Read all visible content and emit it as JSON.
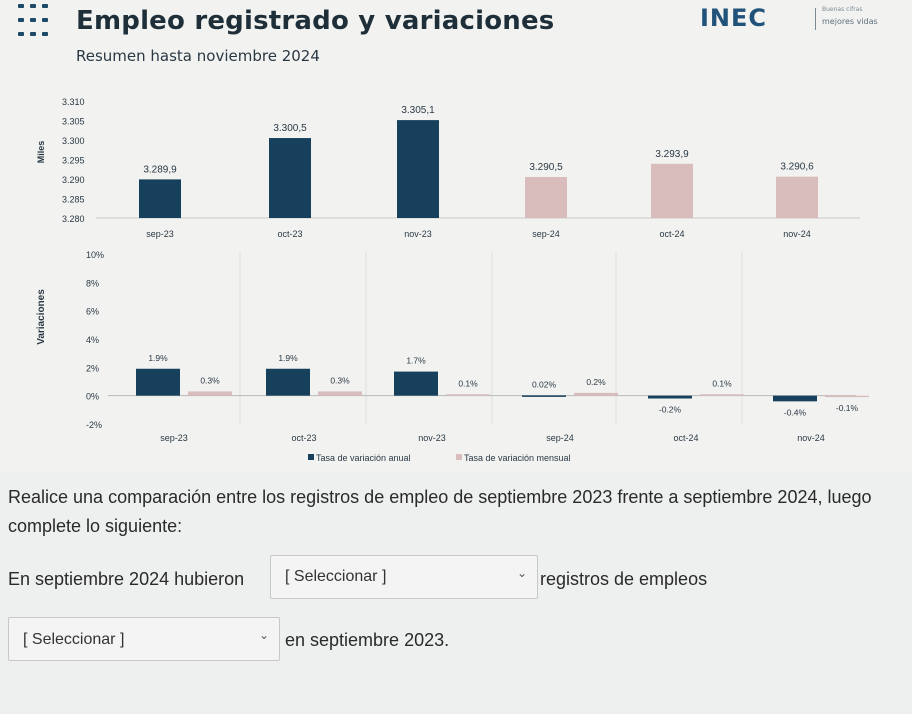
{
  "header": {
    "title": "Empleo registrado y variaciones",
    "subtitle": "Resumen hasta noviembre 2024",
    "logo_text": "INEC",
    "logo_tagline_small": "Buenas cifras",
    "logo_tagline": "mejores vidas"
  },
  "chart_data": [
    {
      "type": "bar",
      "ylabel": "Miles",
      "ylim": [
        3280,
        3310
      ],
      "yticks": [
        "3.310",
        "3.305",
        "3.300",
        "3.295",
        "3.290",
        "3.285",
        "3.280"
      ],
      "categories": [
        "sep-23",
        "oct-23",
        "nov-23",
        "sep-24",
        "oct-24",
        "nov-24"
      ],
      "values": [
        3289.9,
        3300.5,
        3305.1,
        3290.5,
        3293.9,
        3290.6
      ],
      "value_labels": [
        "3.289,9",
        "3.300,5",
        "3.305,1",
        "3.290,5",
        "3.293,9",
        "3.290,6"
      ],
      "colors": [
        "#16405c",
        "#16405c",
        "#16405c",
        "#d9bcbc",
        "#d9bcbc",
        "#d9bcbc"
      ]
    },
    {
      "type": "bar",
      "ylabel": "Variaciones",
      "ylim": [
        -2,
        10
      ],
      "yticks": [
        "10%",
        "8%",
        "6%",
        "4%",
        "2%",
        "0%",
        "-2%"
      ],
      "categories": [
        "sep-23",
        "oct-23",
        "nov-23",
        "sep-24",
        "oct-24",
        "nov-24"
      ],
      "series": [
        {
          "name": "Tasa de variación anual",
          "values": [
            1.9,
            1.9,
            1.7,
            0.02,
            -0.2,
            -0.4
          ],
          "labels": [
            "1.9%",
            "1.9%",
            "1.7%",
            "0.02%",
            "-0.2%",
            "-0.4%"
          ],
          "color": "#16405c"
        },
        {
          "name": "Tasa de variación mensual",
          "values": [
            0.3,
            0.3,
            0.1,
            0.2,
            0.1,
            -0.1
          ],
          "labels": [
            "0.3%",
            "0.3%",
            "0.1%",
            "0.2%",
            "0.1%",
            "-0.1%"
          ],
          "color": "#d9bcbc"
        }
      ],
      "legend": "bottom"
    }
  ],
  "question": {
    "text": "Realice una comparación entre los registros de empleo de septiembre 2023 frente a septiembre 2024, luego complete lo siguiente:",
    "line1_prefix": "En septiembre 2024 hubieron",
    "line1_suffix": "registros de empleos",
    "line2_suffix": "en septiembre 2023.",
    "select1_value": "[ Seleccionar ]",
    "select2_value": "[ Seleccionar ]"
  }
}
